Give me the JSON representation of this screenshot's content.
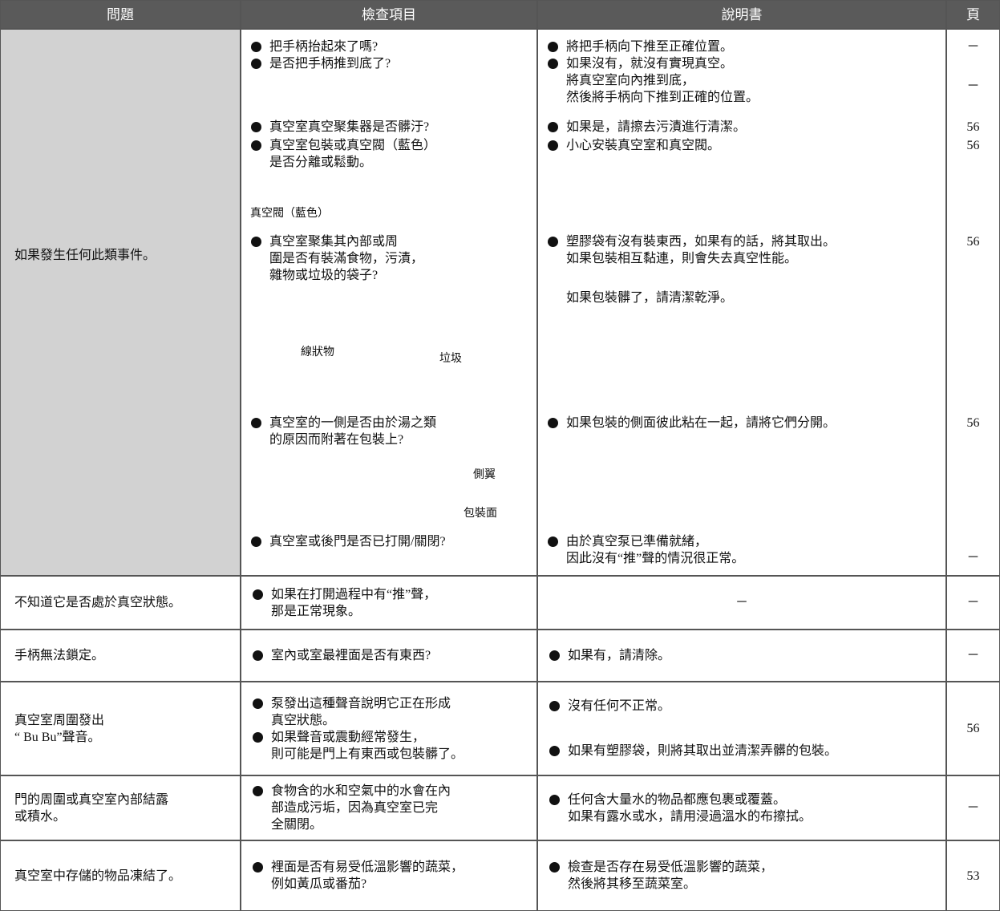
{
  "table": {
    "header": [
      "問題",
      "檢查項目",
      "說明書",
      "頁"
    ],
    "rows": [
      {
        "problem": "如果發生任何此類事件。",
        "checks": [
          "把手柄抬起來了嗎?",
          "是否把手柄推到底了?",
          "真空室真空聚集器是否髒汙?",
          "真空室包裝或真空閥（藍色）\n是否分離或鬆動。",
          "真空室聚集其內部或周\n圍是否有裝滿食物，污漬，\n雜物或垃圾的袋子?",
          "真空室的一側是否由於湯之類\n的原因而附著在包裝上?",
          "真空室或後門是否已打開/關閉?"
        ],
        "explanations": [
          "將把手柄向下推至正確位置。",
          "如果沒有，就沒有實現真空。\n將真空室向內推到底，\n然後將手柄向下推到正確的位置。",
          "如果是，請擦去污漬進行清潔。",
          "小心安裝真空室和真空閥。",
          "塑膠袋有沒有裝東西，如果有的話，將其取出。\n如果包裝相互黏連，則會失去真空性能。",
          "如果包裝髒了，請清潔乾淨。",
          "如果包裝的側面彼此粘在一起，請將它們分開。",
          "由於真空泵已準備就緒，\n因此沒有“推”聲的情況很正常。"
        ],
        "pages": [
          "－",
          "－",
          "56",
          "56",
          "56",
          "56",
          "－"
        ],
        "figure_labels": [
          "真空閥（藍色）",
          "線狀物",
          "垃圾",
          "側翼",
          "包裝面"
        ]
      },
      {
        "problem": "不知道它是否處於真空狀態。",
        "checks": [
          "如果在打開過程中有“推”聲，\n那是正常現象。"
        ],
        "explanations": [
          "－"
        ],
        "pages": [
          "－"
        ]
      },
      {
        "problem": "手柄無法鎖定。",
        "checks": [
          "室內或室最裡面是否有東西?"
        ],
        "explanations": [
          "如果有，請清除。"
        ],
        "pages": [
          "－"
        ]
      },
      {
        "problem": "真空室周圍發出\n“ Bu Bu”聲音。",
        "checks": [
          "泵發出這種聲音說明它正在形成\n真空狀態。",
          "如果聲音或震動經常發生，\n則可能是門上有東西或包裝髒了。"
        ],
        "explanations": [
          "沒有任何不正常。",
          "如果有塑膠袋，則將其取出並清潔弄髒的包裝。"
        ],
        "pages": [
          "56"
        ]
      },
      {
        "problem": "門的周圍或真空室內部結露\n或積水。",
        "checks": [
          "食物含的水和空氣中的水會在內\n部造成污垢，因為真空室已完\n全關閉。"
        ],
        "explanations": [
          "任何含大量水的物品都應包裹或覆蓋。\n如果有露水或水，請用浸過溫水的布擦拭。"
        ],
        "pages": [
          "－"
        ]
      },
      {
        "problem": "真空室中存儲的物品凍結了。",
        "checks": [
          "裡面是否有易受低溫影響的蔬菜，\n例如黃瓜或番茄?"
        ],
        "explanations": [
          "檢查是否存在易受低溫影響的蔬菜，\n然後將其移至蔬菜室。"
        ],
        "pages": [
          "53"
        ]
      }
    ]
  }
}
